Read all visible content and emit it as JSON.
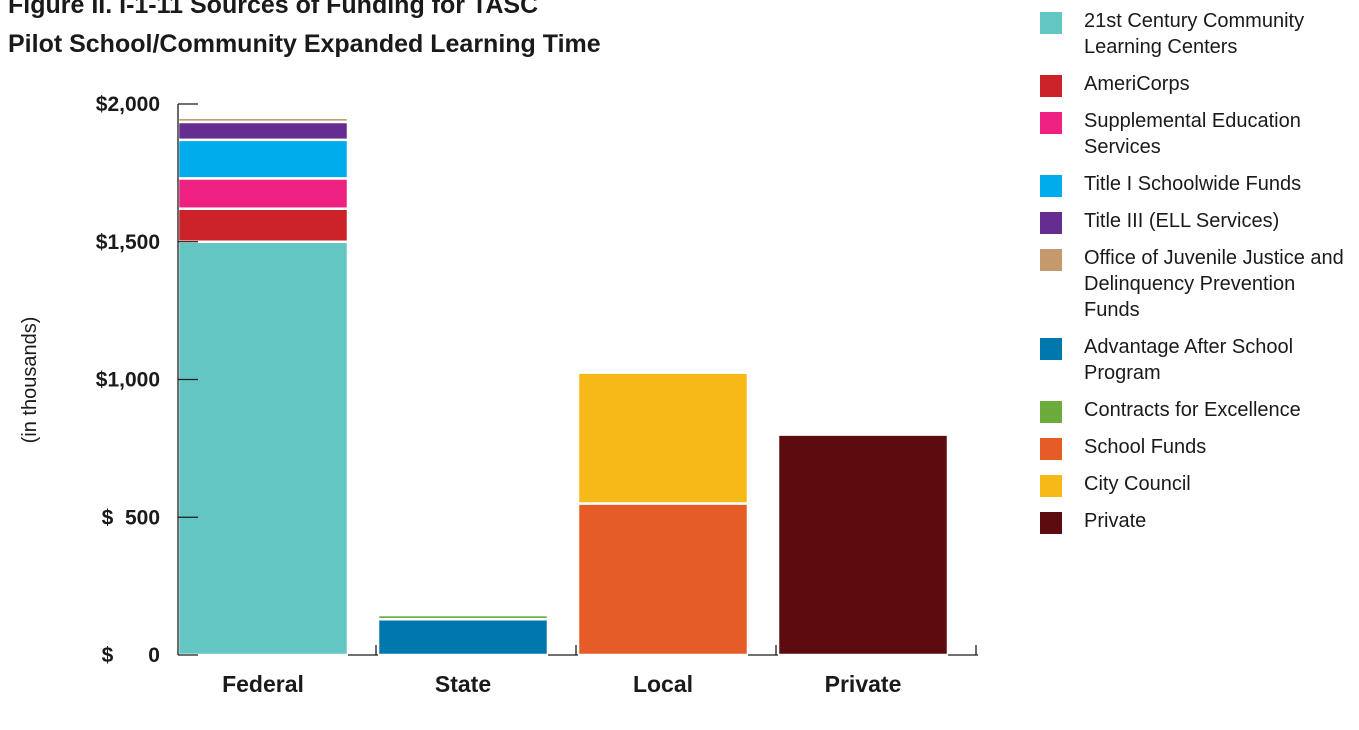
{
  "chart_data": {
    "type": "bar",
    "stacked": true,
    "title_lines": [
      "Figure II. I-1-11 Sources of Funding for TASC",
      "Pilot School/Community Expanded Learning Time"
    ],
    "ylabel": "(in thousands)",
    "xlabel": "",
    "ylim": [
      0,
      2000
    ],
    "y_ticks": [
      {
        "value": 0,
        "label": "$      0"
      },
      {
        "value": 500,
        "label": "$  500"
      },
      {
        "value": 1000,
        "label": "$1,000"
      },
      {
        "value": 1500,
        "label": "$1,500"
      },
      {
        "value": 2000,
        "label": "$2,000"
      }
    ],
    "categories": [
      "Federal",
      "State",
      "Local",
      "Private"
    ],
    "series": [
      {
        "name": "21st Century Community Learning Centers",
        "color": "#63c6c2",
        "values": [
          1500,
          0,
          0,
          0
        ]
      },
      {
        "name": "AmeriCorps",
        "color": "#cc2229",
        "values": [
          120,
          0,
          0,
          0
        ]
      },
      {
        "name": "Supplemental Education Services",
        "color": "#ee2180",
        "values": [
          110,
          0,
          0,
          0
        ]
      },
      {
        "name": "Title I Schoolwide Funds",
        "color": "#00acec",
        "values": [
          140,
          0,
          0,
          0
        ]
      },
      {
        "name": "Title III (ELL Services)",
        "color": "#662d91",
        "values": [
          65,
          0,
          0,
          0
        ]
      },
      {
        "name": "Office of Juvenile Justice and Delinquency Prevention Funds",
        "color": "#c49a6c",
        "values": [
          15,
          0,
          0,
          0
        ]
      },
      {
        "name": "Advantage After School Program",
        "color": "#0078ad",
        "values": [
          0,
          130,
          0,
          0
        ]
      },
      {
        "name": "Contracts for Excellence",
        "color": "#6aab3b",
        "values": [
          0,
          15,
          0,
          0
        ]
      },
      {
        "name": "School Funds",
        "color": "#e65c27",
        "values": [
          0,
          0,
          550,
          0
        ]
      },
      {
        "name": "City Council",
        "color": "#f7b918",
        "values": [
          0,
          0,
          475,
          0
        ]
      },
      {
        "name": "Private",
        "color": "#5c0c0e",
        "values": [
          0,
          0,
          0,
          800
        ]
      }
    ],
    "legend_position": "right",
    "grid": false
  },
  "legend": [
    {
      "label": "21st Century Community Learning Centers",
      "color": "#63c6c2"
    },
    {
      "label": "AmeriCorps",
      "color": "#cc2229"
    },
    {
      "label": "Supplemental Education Services",
      "color": "#ee2180"
    },
    {
      "label": "Title I Schoolwide Funds",
      "color": "#00acec"
    },
    {
      "label": "Title III (ELL Services)",
      "color": "#662d91"
    },
    {
      "label": "Office of Juvenile Justice and Delinquency Prevention Funds",
      "color": "#c49a6c"
    },
    {
      "label": "Advantage After School Program",
      "color": "#0078ad"
    },
    {
      "label": "Contracts for Excellence",
      "color": "#6aab3b"
    },
    {
      "label": "School Funds",
      "color": "#e65c27"
    },
    {
      "label": "City Council",
      "color": "#f7b918"
    },
    {
      "label": "Private",
      "color": "#5c0c0e"
    }
  ]
}
